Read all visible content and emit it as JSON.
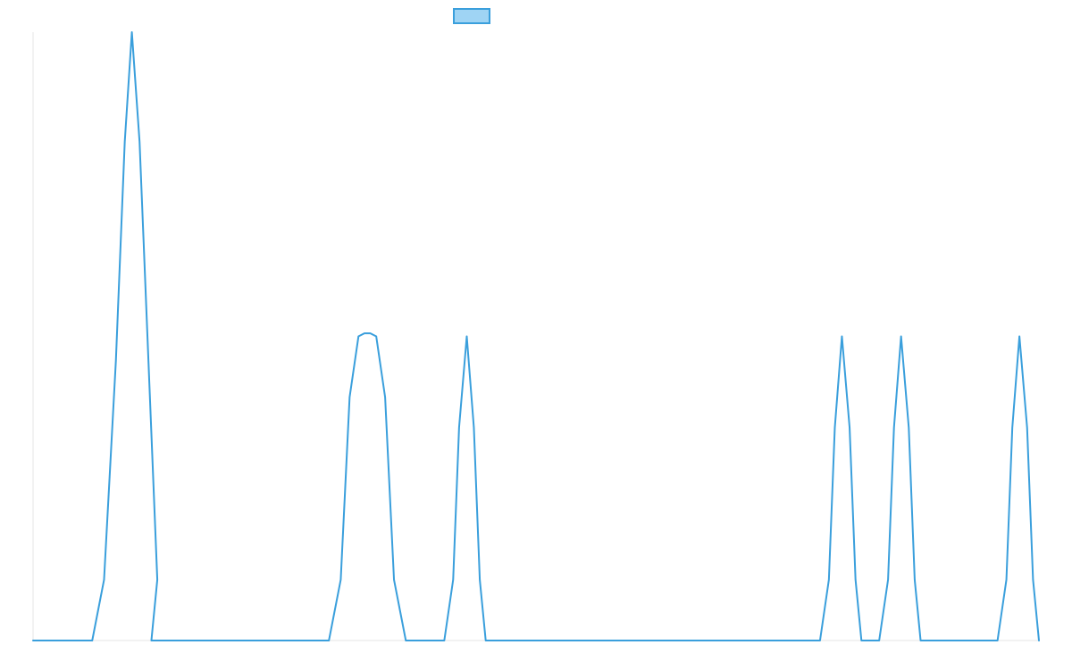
{
  "chart_data": {
    "type": "line",
    "title": "",
    "xlabel": "",
    "ylabel": "",
    "grid": false,
    "legend_position": "top-center",
    "x_range": [
      0,
      17
    ],
    "ylim": [
      0,
      2
    ],
    "series": [
      {
        "name": "",
        "color": "#3a9fdc",
        "legend_fill": "#9fd4f4",
        "points": [
          [
            0,
            0
          ],
          [
            1,
            0
          ],
          [
            1.2,
            0.2
          ],
          [
            1.4,
            0.92
          ],
          [
            1.55,
            1.64
          ],
          [
            1.67,
            2
          ],
          [
            1.8,
            1.64
          ],
          [
            1.95,
            0.92
          ],
          [
            2.1,
            0.2
          ],
          [
            2,
            0
          ],
          [
            3,
            0
          ],
          [
            4,
            0
          ],
          [
            5,
            0
          ],
          [
            5.2,
            0.2
          ],
          [
            5.35,
            0.8
          ],
          [
            5.5,
            1
          ],
          [
            5.6,
            1.01
          ],
          [
            5.7,
            1.01
          ],
          [
            5.8,
            1
          ],
          [
            5.95,
            0.8
          ],
          [
            6.1,
            0.2
          ],
          [
            6.3,
            0
          ],
          [
            6.95,
            0
          ],
          [
            7.1,
            0.2
          ],
          [
            7.2,
            0.7
          ],
          [
            7.33,
            1
          ],
          [
            7.45,
            0.7
          ],
          [
            7.55,
            0.2
          ],
          [
            7.65,
            0
          ],
          [
            8,
            0
          ],
          [
            9,
            0
          ],
          [
            10,
            0
          ],
          [
            11,
            0
          ],
          [
            12,
            0
          ],
          [
            13.3,
            0
          ],
          [
            13.45,
            0.2
          ],
          [
            13.55,
            0.7
          ],
          [
            13.67,
            1
          ],
          [
            13.8,
            0.7
          ],
          [
            13.9,
            0.2
          ],
          [
            14,
            0
          ],
          [
            14.3,
            0
          ],
          [
            14.45,
            0.2
          ],
          [
            14.55,
            0.7
          ],
          [
            14.67,
            1
          ],
          [
            14.8,
            0.7
          ],
          [
            14.9,
            0.2
          ],
          [
            15,
            0
          ],
          [
            16.3,
            0
          ],
          [
            16.45,
            0.2
          ],
          [
            16.55,
            0.7
          ],
          [
            16.67,
            1
          ],
          [
            16.8,
            0.7
          ],
          [
            16.9,
            0.2
          ],
          [
            17,
            0
          ]
        ]
      }
    ]
  }
}
